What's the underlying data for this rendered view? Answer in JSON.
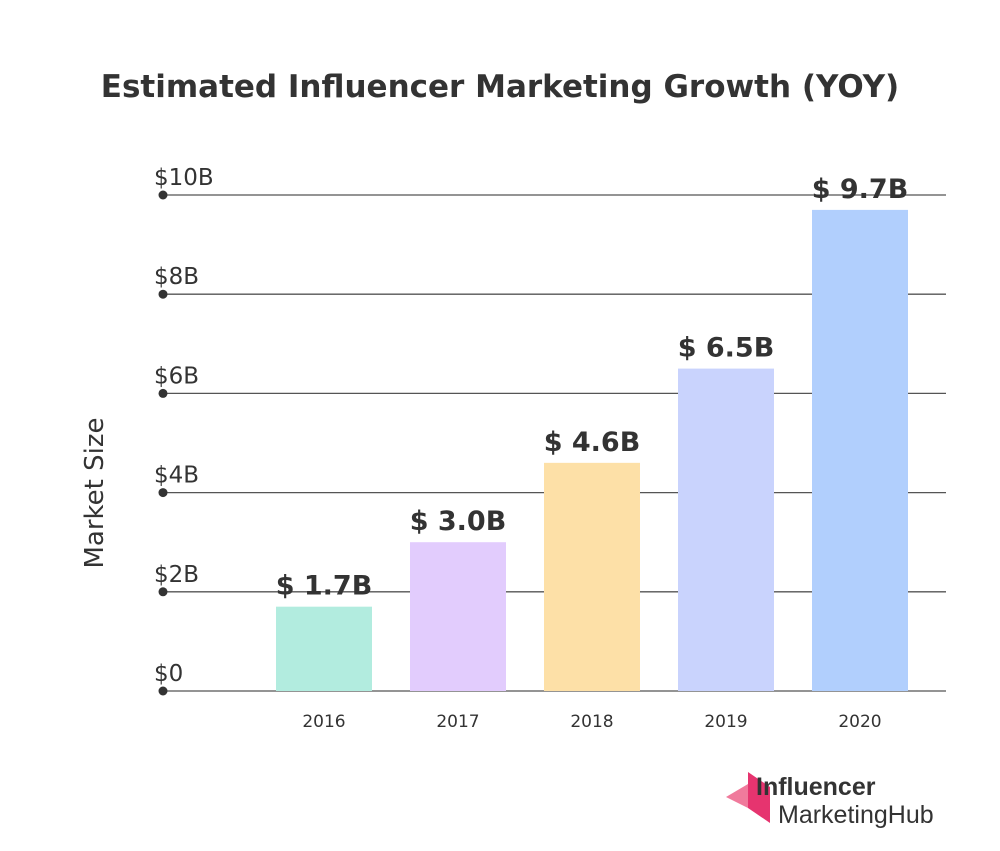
{
  "chart_data": {
    "type": "bar",
    "title": "Estimated Influencer Marketing Growth (YOY)",
    "ylabel": "Market Size",
    "xlabel": "",
    "categories": [
      "2016",
      "2017",
      "2018",
      "2019",
      "2020"
    ],
    "values": [
      1.7,
      3.0,
      4.6,
      6.5,
      9.7
    ],
    "value_labels": [
      "$ 1.7B",
      "$ 3.0B",
      "$ 4.6B",
      "$ 6.5B",
      "$ 9.7B"
    ],
    "bar_colors": [
      "#b2ecdf",
      "#e2ccfd",
      "#fde0a7",
      "#c9d3fd",
      "#b1cffd"
    ],
    "ylim": [
      0,
      10
    ],
    "yticks": [
      0,
      2,
      4,
      6,
      8,
      10
    ],
    "ytick_labels": [
      "$0",
      "$2B",
      "$4B",
      "$6B",
      "$8B",
      "$10B"
    ],
    "grid": true
  },
  "branding": {
    "line1": "Influencer",
    "line2": "MarketingHub",
    "logo_colors": [
      "#e6346f",
      "#f07a9c"
    ]
  }
}
